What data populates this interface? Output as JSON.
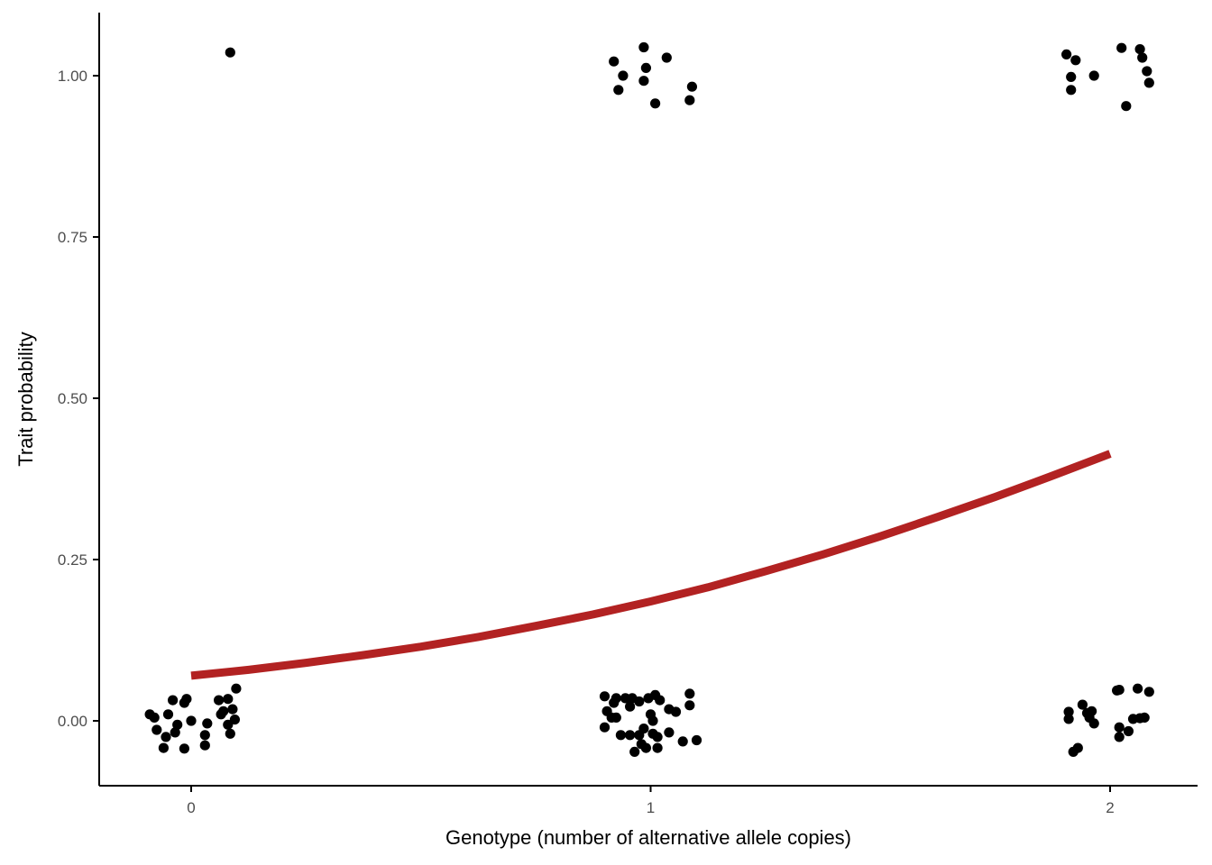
{
  "chart_data": {
    "type": "scatter",
    "title": "",
    "xlabel": "Genotype (number of alternative allele copies)",
    "ylabel": "Trait probability",
    "xlim": [
      -0.2,
      2.2
    ],
    "ylim": [
      -0.1,
      1.1
    ],
    "x_ticks": [
      0,
      1,
      2
    ],
    "x_tick_labels": [
      "0",
      "1",
      "2"
    ],
    "y_ticks": [
      0,
      0.25,
      0.5,
      0.75,
      1
    ],
    "y_tick_labels": [
      "0.00",
      "0.25",
      "0.50",
      "0.75",
      "1.00"
    ],
    "grid": false,
    "legend": "none",
    "colors": {
      "points": "#000000",
      "curve": "#b22222",
      "axis": "#000000",
      "tick_text": "#4d4d4d"
    },
    "series": [
      {
        "kind": "jittered-points",
        "points": [
          [
            0.085,
            1.036
          ],
          [
            -0.09,
            0.01
          ],
          [
            -0.08,
            0.005
          ],
          [
            -0.075,
            -0.014
          ],
          [
            -0.06,
            -0.042
          ],
          [
            -0.055,
            -0.025
          ],
          [
            -0.05,
            0.01
          ],
          [
            -0.04,
            0.032
          ],
          [
            -0.035,
            -0.018
          ],
          [
            -0.03,
            -0.006
          ],
          [
            -0.015,
            0.028
          ],
          [
            -0.01,
            0.034
          ],
          [
            -0.015,
            -0.043
          ],
          [
            0.0,
            0.0
          ],
          [
            0.03,
            -0.022
          ],
          [
            0.03,
            -0.038
          ],
          [
            0.035,
            -0.004
          ],
          [
            0.06,
            0.032
          ],
          [
            0.065,
            0.01
          ],
          [
            0.07,
            0.015
          ],
          [
            0.08,
            0.034
          ],
          [
            0.08,
            -0.006
          ],
          [
            0.085,
            -0.02
          ],
          [
            0.09,
            0.018
          ],
          [
            0.095,
            0.002
          ],
          [
            0.098,
            0.05
          ],
          [
            0.92,
            1.022
          ],
          [
            0.93,
            0.978
          ],
          [
            0.94,
            1.0
          ],
          [
            0.985,
            1.044
          ],
          [
            0.985,
            0.992
          ],
          [
            0.99,
            1.012
          ],
          [
            1.01,
            0.957
          ],
          [
            1.035,
            1.028
          ],
          [
            1.085,
            0.962
          ],
          [
            1.09,
            0.983
          ],
          [
            0.9,
            0.038
          ],
          [
            0.9,
            -0.01
          ],
          [
            0.905,
            0.015
          ],
          [
            0.915,
            0.005
          ],
          [
            0.92,
            0.028
          ],
          [
            0.925,
            0.035
          ],
          [
            0.925,
            0.005
          ],
          [
            0.935,
            -0.022
          ],
          [
            0.945,
            0.035
          ],
          [
            0.955,
            0.022
          ],
          [
            0.955,
            -0.022
          ],
          [
            0.96,
            0.035
          ],
          [
            0.965,
            -0.048
          ],
          [
            0.975,
            -0.022
          ],
          [
            0.975,
            0.03
          ],
          [
            0.98,
            -0.036
          ],
          [
            0.985,
            -0.012
          ],
          [
            0.99,
            -0.042
          ],
          [
            0.995,
            0.035
          ],
          [
            1.0,
            0.01
          ],
          [
            1.005,
            -0.02
          ],
          [
            1.005,
            0.0
          ],
          [
            1.01,
            0.04
          ],
          [
            1.015,
            -0.025
          ],
          [
            1.015,
            -0.042
          ],
          [
            1.02,
            0.032
          ],
          [
            1.04,
            0.018
          ],
          [
            1.04,
            -0.018
          ],
          [
            1.055,
            0.014
          ],
          [
            1.07,
            -0.032
          ],
          [
            1.085,
            0.042
          ],
          [
            1.085,
            0.024
          ],
          [
            1.1,
            -0.03
          ],
          [
            1.905,
            1.033
          ],
          [
            1.915,
            0.998
          ],
          [
            1.915,
            0.978
          ],
          [
            1.925,
            1.024
          ],
          [
            1.965,
            1.0
          ],
          [
            2.025,
            1.043
          ],
          [
            2.035,
            0.953
          ],
          [
            2.065,
            1.041
          ],
          [
            2.07,
            1.028
          ],
          [
            2.08,
            1.007
          ],
          [
            2.085,
            0.989
          ],
          [
            1.91,
            0.014
          ],
          [
            1.91,
            0.003
          ],
          [
            1.92,
            -0.048
          ],
          [
            1.93,
            -0.042
          ],
          [
            1.94,
            0.025
          ],
          [
            1.95,
            0.012
          ],
          [
            1.955,
            0.005
          ],
          [
            1.96,
            0.015
          ],
          [
            1.965,
            -0.004
          ],
          [
            2.015,
            0.047
          ],
          [
            2.02,
            0.048
          ],
          [
            2.02,
            -0.025
          ],
          [
            2.02,
            -0.01
          ],
          [
            2.04,
            -0.016
          ],
          [
            2.05,
            0.003
          ],
          [
            2.06,
            0.05
          ],
          [
            2.065,
            0.004
          ],
          [
            2.075,
            0.005
          ],
          [
            2.085,
            0.045
          ]
        ]
      },
      {
        "kind": "logistic-fit-curve",
        "x": [
          0,
          0.125,
          0.25,
          0.375,
          0.5,
          0.625,
          0.75,
          0.875,
          1,
          1.125,
          1.25,
          1.375,
          1.5,
          1.625,
          1.75,
          1.875,
          2
        ],
        "y": [
          0.07,
          0.079,
          0.09,
          0.102,
          0.115,
          0.13,
          0.147,
          0.165,
          0.185,
          0.207,
          0.232,
          0.258,
          0.286,
          0.316,
          0.347,
          0.38,
          0.414
        ]
      }
    ]
  }
}
